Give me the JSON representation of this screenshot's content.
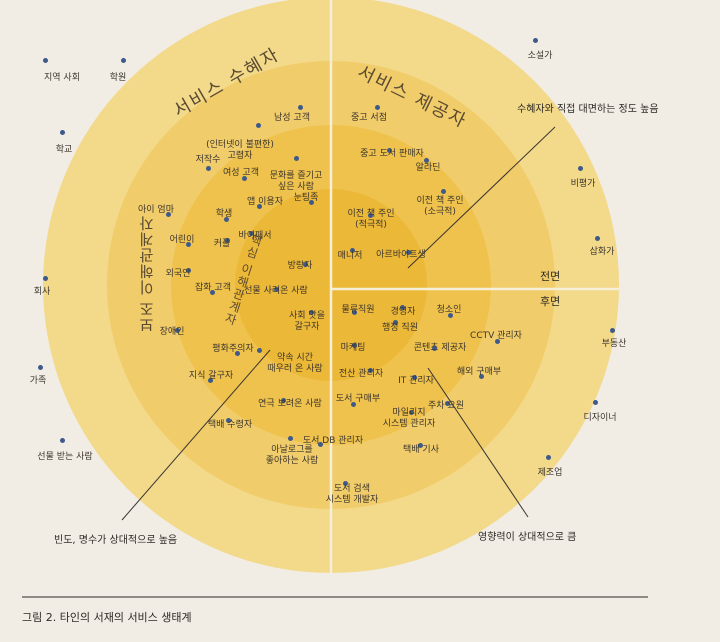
{
  "titles": {
    "recipients": "서비스 수혜자",
    "providers": "서비스 제공자",
    "secondary": "보조 이해관계자",
    "core": "핵심 이해관계자"
  },
  "sides": {
    "front": "전면",
    "back": "후면"
  },
  "annotations": {
    "contact": "수혜자와 직접 대면하는 정도 높음",
    "frequency": "빈도, 명수가 상대적으로 높음",
    "influence": "영향력이 상대적으로 큼"
  },
  "caption": "그림 2. 타인의 서재의 서비스 생태계",
  "outer_labels": [
    "지역 사회",
    "학원",
    "학교",
    "회사",
    "가족",
    "선물 받는 사람",
    "소설가",
    "비평가",
    "삽화가",
    "부동산",
    "디자이너",
    "제조업"
  ],
  "mid_labels": [
    "남성 고객",
    "(인터넷이 불편한)\n고령자",
    "문화를 즐기고\n싶은 사람",
    "저작수",
    "여성 고객",
    "아이 엄마",
    "학생",
    "어린이",
    "외국인",
    "잡화 고객",
    "장애인",
    "평화주의자",
    "지식 갈구자",
    "연극 보려온 사람",
    "택배 수령자",
    "아날로그를\n좋아하는 사람",
    "중고 서점",
    "중고 도서 판매자",
    "알라딘",
    "이전 책 주인\n(소극적)",
    "청소인",
    "CCTV 관리자",
    "콘텐츠 제공자",
    "해외 구매부",
    "IT 관리자",
    "주차 요원",
    "도서 구매부",
    "마일리지\n시스템 관리자",
    "택배 기사",
    "도서 DB 관리자",
    "도서 검색\n시스템 개발자"
  ],
  "core_labels": [
    "앱 이용자",
    "눈팅족",
    "이전 책 주인\n(적극적)",
    "바이패서",
    "커플",
    "방랑자",
    "매니저",
    "아르바이트생",
    "선물 사러온 사람",
    "사회 맛을\n갈구자",
    "물류직원",
    "경영자",
    "행정 직원",
    "약속 시간\n때우러 온 사람",
    "마케팅",
    "전산 관리자"
  ]
}
